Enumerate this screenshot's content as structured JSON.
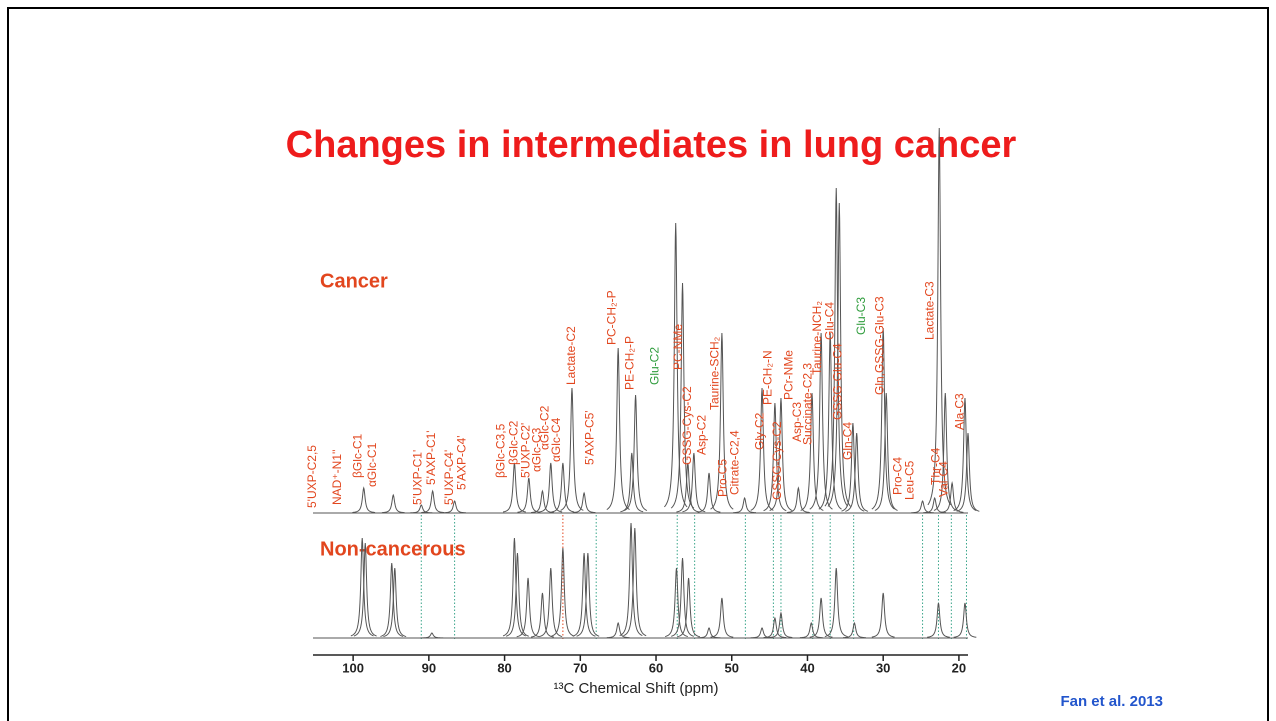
{
  "chart_data": {
    "type": "spectrum",
    "title": "Changes in intermediates in lung cancer",
    "xlabel": "¹³C Chemical Shift (ppm)",
    "xlim": [
      105.3,
      18.8
    ],
    "xticks": [
      100,
      90,
      80,
      70,
      60,
      50,
      40,
      30,
      20
    ],
    "label_color": "#e2461e",
    "series": [
      {
        "name": "Cancer",
        "color": "#555555",
        "x": [
          98.6,
          94.7,
          91,
          89.5,
          86.6,
          78.7,
          76.8,
          75,
          73.9,
          72.3,
          71.1,
          69.5,
          65,
          63.2,
          62.7,
          57.4,
          56.5,
          55.8,
          55,
          53,
          51.3,
          48.3,
          46,
          44.3,
          43.5,
          41.2,
          39.4,
          38.2,
          37,
          36.2,
          35.8,
          34,
          33.5,
          30,
          29.6,
          24.8,
          23.2,
          22.6,
          21.8,
          20.9,
          19.2,
          18.8
        ],
        "values": [
          25,
          18,
          8,
          22,
          12,
          50,
          35,
          22,
          50,
          50,
          125,
          20,
          165,
          60,
          118,
          290,
          230,
          50,
          60,
          40,
          180,
          15,
          125,
          110,
          115,
          25,
          120,
          180,
          180,
          325,
          310,
          90,
          80,
          185,
          120,
          12,
          15,
          385,
          120,
          30,
          115,
          80
        ]
      },
      {
        "name": "Non-cancerous",
        "color": "#555555",
        "x": [
          98.8,
          98.4,
          94.9,
          94.5,
          89.6,
          78.7,
          78.3,
          76.9,
          75,
          73.9,
          72.3,
          69.5,
          69,
          65,
          63.3,
          62.8,
          57.3,
          56.5,
          55.7,
          53,
          51.3,
          46,
          44.3,
          43.5,
          39.5,
          38.2,
          36.2,
          33.8,
          30,
          22.7,
          19.2
        ],
        "values": [
          100,
          95,
          75,
          70,
          5,
          100,
          85,
          60,
          45,
          70,
          90,
          85,
          85,
          15,
          115,
          110,
          70,
          80,
          60,
          10,
          40,
          10,
          20,
          25,
          15,
          40,
          70,
          15,
          45,
          35,
          35
        ]
      }
    ],
    "annotations": [
      {
        "text": "5'UXP-C2,5",
        "x": 105.3,
        "color": "#e2461e"
      },
      {
        "text": "NAD⁺-N1''",
        "x": 102.0,
        "color": "#e2461e"
      },
      {
        "text": "βGlc-C1",
        "x": 99.3,
        "color": "#e2461e"
      },
      {
        "text": "αGlc-C1",
        "x": 97.4,
        "color": "#e2461e"
      },
      {
        "text": "5'UXP-C1'",
        "x": 91.4,
        "color": "#e2461e"
      },
      {
        "text": "5'AXP-C1'",
        "x": 89.6,
        "color": "#e2461e"
      },
      {
        "text": "5'UXP-C4'",
        "x": 87.2,
        "color": "#e2461e"
      },
      {
        "text": "5'AXP-C4'",
        "x": 85.6,
        "color": "#e2461e"
      },
      {
        "text": "βGlc-C3,5",
        "x": 80.4,
        "color": "#e2461e"
      },
      {
        "text": "βGlc-C2",
        "x": 78.7,
        "color": "#e2461e"
      },
      {
        "text": "5'UXP-C2'",
        "x": 77.1,
        "color": "#e2461e"
      },
      {
        "text": "αGlc-C3",
        "x": 75.7,
        "color": "#e2461e"
      },
      {
        "text": "αGlc-C2",
        "x": 74.6,
        "color": "#e2461e"
      },
      {
        "text": "αGlc-C4",
        "x": 73.1,
        "color": "#e2461e"
      },
      {
        "text": "Lactate-C2",
        "x": 71.1,
        "color": "#e2461e"
      },
      {
        "text": "5'AXP-C5'",
        "x": 68.7,
        "color": "#e2461e"
      },
      {
        "text": "PC-CH₂-P",
        "x": 65.8,
        "color": "#e2461e"
      },
      {
        "text": "PE-CH₂-P",
        "x": 63.4,
        "color": "#e2461e"
      },
      {
        "text": "Glu-C2",
        "x": 60.1,
        "color": "#2e9c3c"
      },
      {
        "text": "PC-NMe",
        "x": 57.0,
        "color": "#e2461e"
      },
      {
        "text": "GSSG-Cys-C2",
        "x": 55.8,
        "color": "#e2461e"
      },
      {
        "text": "Asp-C2",
        "x": 53.9,
        "color": "#e2461e"
      },
      {
        "text": "Taurine-SCH₂",
        "x": 52.2,
        "color": "#e2461e"
      },
      {
        "text": "Pro-C5",
        "x": 51.1,
        "color": "#e2461e"
      },
      {
        "text": "Citrate-C2,4",
        "x": 49.5,
        "color": "#e2461e"
      },
      {
        "text": "Gly-C2",
        "x": 46.2,
        "color": "#e2461e"
      },
      {
        "text": "PE-CH₂-N",
        "x": 45.2,
        "color": "#e2461e"
      },
      {
        "text": "GSSG-Cys-C2",
        "x": 43.9,
        "color": "#e2461e"
      },
      {
        "text": "PCr-NMe",
        "x": 42.4,
        "color": "#e2461e"
      },
      {
        "text": "Asp-C3",
        "x": 41.3,
        "color": "#e2461e"
      },
      {
        "text": "Succinate-C2,3",
        "x": 39.9,
        "color": "#e2461e"
      },
      {
        "text": "Taurine-NCH₂",
        "x": 38.6,
        "color": "#e2461e"
      },
      {
        "text": "Glu-C4",
        "x": 37.0,
        "color": "#e2461e"
      },
      {
        "text": "GSSG-Glu-C4",
        "x": 35.9,
        "color": "#e2461e"
      },
      {
        "text": "Gln-C4",
        "x": 34.6,
        "color": "#e2461e"
      },
      {
        "text": "Glu-C3",
        "x": 32.8,
        "color": "#2e9c3c"
      },
      {
        "text": "Gln,GSSG-Glu-C3",
        "x": 30.4,
        "color": "#e2461e"
      },
      {
        "text": "Pro-C4",
        "x": 28.0,
        "color": "#e2461e"
      },
      {
        "text": "Leu-C5",
        "x": 26.4,
        "color": "#e2461e"
      },
      {
        "text": "Lactate-C3",
        "x": 23.8,
        "color": "#e2461e"
      },
      {
        "text": "Thr-C4",
        "x": 23.0,
        "color": "#e2461e"
      },
      {
        "text": "Val-C4",
        "x": 21.9,
        "color": "#e2461e"
      },
      {
        "text": "Ala-C3",
        "x": 19.8,
        "color": "#e2461e"
      }
    ],
    "guide_lines": [
      {
        "x": 91,
        "color": "#3aa58a"
      },
      {
        "x": 86.6,
        "color": "#3aa58a"
      },
      {
        "x": 72.3,
        "color": "#e2461e"
      },
      {
        "x": 67.9,
        "color": "#3aa58a"
      },
      {
        "x": 57.2,
        "color": "#3aa58a"
      },
      {
        "x": 54.9,
        "color": "#3aa58a"
      },
      {
        "x": 48.2,
        "color": "#3aa58a"
      },
      {
        "x": 44.5,
        "color": "#3aa58a"
      },
      {
        "x": 43.5,
        "color": "#3aa58a"
      },
      {
        "x": 39.3,
        "color": "#3aa58a"
      },
      {
        "x": 37,
        "color": "#3aa58a"
      },
      {
        "x": 33.9,
        "color": "#3aa58a"
      },
      {
        "x": 24.8,
        "color": "#3aa58a"
      },
      {
        "x": 22.7,
        "color": "#3aa58a"
      },
      {
        "x": 21,
        "color": "#3aa58a"
      },
      {
        "x": 19,
        "color": "#3aa58a"
      }
    ]
  },
  "citation": "Fan et al. 2013"
}
